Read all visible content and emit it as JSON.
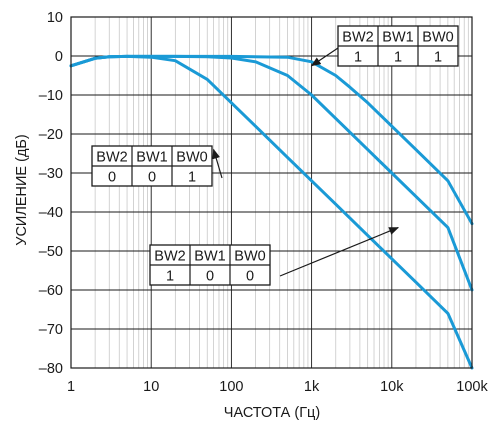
{
  "chart_data": {
    "type": "line",
    "xlabel": "ЧАСТОТА (Гц)",
    "ylabel": "УСИЛЕНИЕ (дБ)",
    "x_scale": "log",
    "xlim": [
      1,
      100000
    ],
    "ylim": [
      -80,
      10
    ],
    "x_ticks": [
      1,
      10,
      100,
      1000,
      10000,
      100000
    ],
    "x_tick_labels": [
      "1",
      "10",
      "100",
      "1k",
      "10k",
      "100k"
    ],
    "y_ticks": [
      10,
      0,
      -10,
      -20,
      -30,
      -40,
      -50,
      -60,
      -70,
      -80
    ],
    "y_tick_labels": [
      "10",
      "0",
      "–10",
      "–20",
      "–30",
      "–40",
      "–50",
      "–60",
      "–70",
      "–80"
    ],
    "grid": true,
    "line_color": "#1a9ad6",
    "series": [
      {
        "x": [
          1,
          2,
          3,
          5,
          10,
          20,
          50,
          100,
          200,
          500,
          1000,
          2000,
          5000,
          10000,
          20000,
          50000,
          100000
        ],
        "y": [
          -2.5,
          -0.6,
          -0.2,
          -0.1,
          -0.3,
          -1.2,
          -6,
          -12,
          -18,
          -26,
          -32,
          -38,
          -46,
          -52,
          -58,
          -66,
          -80
        ]
      },
      {
        "x": [
          1,
          2,
          3,
          5,
          10,
          20,
          50,
          100,
          200,
          500,
          1000,
          2000,
          5000,
          10000,
          20000,
          50000,
          100000
        ],
        "y": [
          -2.5,
          -0.6,
          -0.2,
          -0.1,
          -0.1,
          -0.1,
          -0.2,
          -0.5,
          -1.5,
          -5,
          -10,
          -16,
          -24,
          -30,
          -36,
          -44,
          -60
        ]
      },
      {
        "x": [
          1,
          2,
          3,
          5,
          10,
          50,
          100,
          500,
          1000,
          2000,
          3000,
          5000,
          10000,
          20000,
          50000,
          100000
        ],
        "y": [
          -2.5,
          -0.6,
          -0.2,
          -0.1,
          -0.1,
          -0.1,
          -0.1,
          -0.3,
          -1.5,
          -5,
          -8,
          -12,
          -18,
          -24,
          -32,
          -43
        ]
      }
    ],
    "annotations": [
      {
        "headers": [
          "BW2",
          "BW1",
          "BW0"
        ],
        "values": [
          "1",
          "1",
          "1"
        ],
        "points_to": {
          "x": 1000,
          "y": -2.5
        }
      },
      {
        "headers": [
          "BW2",
          "BW1",
          "BW0"
        ],
        "values": [
          "0",
          "0",
          "1"
        ],
        "points_to": {
          "x": 60,
          "y": -24
        }
      },
      {
        "headers": [
          "BW2",
          "BW1",
          "BW0"
        ],
        "values": [
          "1",
          "0",
          "0"
        ],
        "points_to": {
          "x": 12000,
          "y": -44
        }
      }
    ]
  }
}
